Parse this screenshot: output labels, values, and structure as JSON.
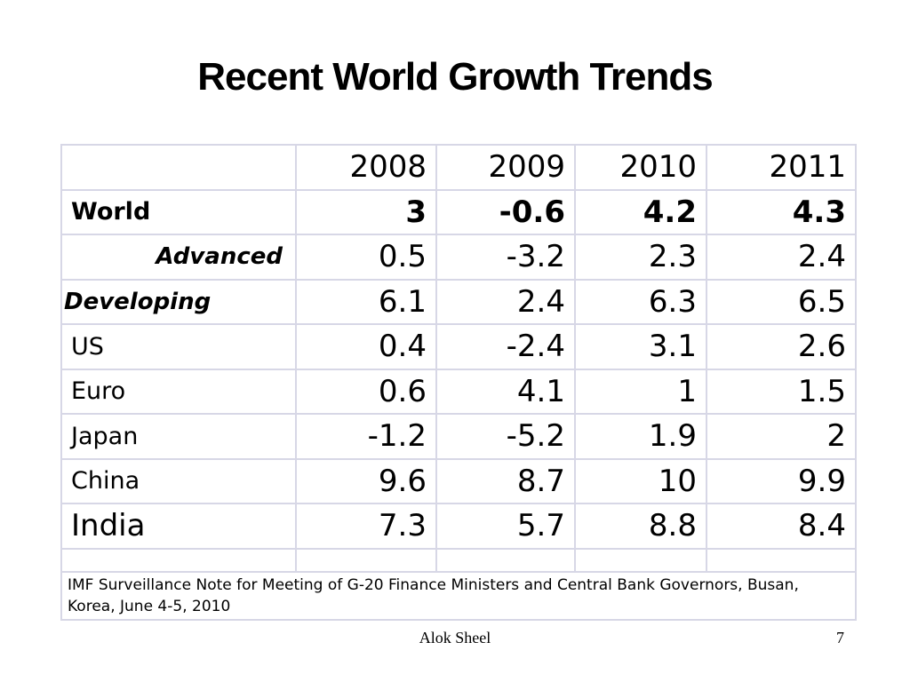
{
  "slide": {
    "title": "Recent World Growth Trends",
    "author": "Alok Sheel",
    "page_number": "7"
  },
  "table": {
    "corner_label": "",
    "years": [
      "2008",
      "2009",
      "2010",
      "2011"
    ],
    "rows": [
      {
        "label": "World",
        "values": [
          "3",
          "-0.6",
          "4.2",
          "4.3"
        ]
      },
      {
        "label": "Advanced",
        "values": [
          "0.5",
          "-3.2",
          "2.3",
          "2.4"
        ]
      },
      {
        "label": "Developing",
        "values": [
          "6.1",
          "2.4",
          "6.3",
          "6.5"
        ]
      },
      {
        "label": "US",
        "values": [
          "0.4",
          "-2.4",
          "3.1",
          "2.6"
        ]
      },
      {
        "label": "Euro",
        "values": [
          "0.6",
          "4.1",
          "1",
          "1.5"
        ]
      },
      {
        "label": "Japan",
        "values": [
          "-1.2",
          "-5.2",
          "1.9",
          "2"
        ]
      },
      {
        "label": "China",
        "values": [
          "9.6",
          "8.7",
          "10",
          "9.9"
        ]
      },
      {
        "label": "India",
        "values": [
          "7.3",
          "5.7",
          "8.8",
          "8.4"
        ]
      }
    ],
    "source_note": "IMF Surveillance Note for Meeting of G-20 Finance Ministers and Central Bank Governors, Busan, Korea, June 4-5, 2010"
  },
  "colors": {
    "table_border": "#d7d7e6",
    "background": "#ffffff",
    "text": "#000000"
  }
}
